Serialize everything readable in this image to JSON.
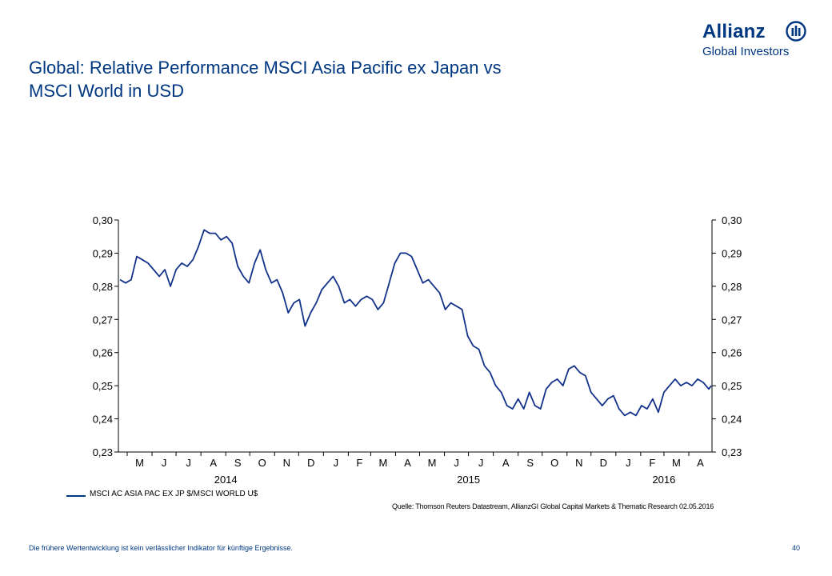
{
  "header": {
    "title_line1": "Global: Relative Performance MSCI Asia Pacific ex Japan vs",
    "title_line2": "MSCI World in USD",
    "logo_word": "Allianz",
    "logo_sub": "Global Investors"
  },
  "colors": {
    "brand": "#003781",
    "series": "#12328a",
    "axis": "#000000"
  },
  "icons": {
    "logo_mark": "allianz-eagle-icon"
  },
  "chart_data": {
    "type": "line",
    "title": "",
    "xlabel": "",
    "ylabel": "",
    "ylim": [
      0.23,
      0.3
    ],
    "yticks": [
      0.3,
      0.29,
      0.28,
      0.27,
      0.26,
      0.25,
      0.24,
      0.23
    ],
    "ytick_labels": [
      "0,30",
      "0,29",
      "0,28",
      "0,27",
      "0,26",
      "0,25",
      "0,24",
      "0,23"
    ],
    "y_axis_both_sides": true,
    "grid": false,
    "xlim": [
      "2014-04-20",
      "2016-04-30"
    ],
    "month_labels": [
      "M",
      "J",
      "J",
      "A",
      "S",
      "O",
      "N",
      "D",
      "J",
      "F",
      "M",
      "A",
      "M",
      "J",
      "J",
      "A",
      "S",
      "O",
      "N",
      "D",
      "J",
      "F",
      "M",
      "A"
    ],
    "month_starts": [
      "2014-05-01",
      "2014-06-01",
      "2014-07-01",
      "2014-08-01",
      "2014-09-01",
      "2014-10-01",
      "2014-11-01",
      "2014-12-01",
      "2015-01-01",
      "2015-02-01",
      "2015-03-01",
      "2015-04-01",
      "2015-05-01",
      "2015-06-01",
      "2015-07-01",
      "2015-08-01",
      "2015-09-01",
      "2015-10-01",
      "2015-11-01",
      "2015-12-01",
      "2016-01-01",
      "2016-02-01",
      "2016-03-01",
      "2016-04-01"
    ],
    "year_labels": [
      {
        "label": "2014",
        "date": "2014-09-01"
      },
      {
        "label": "2015",
        "date": "2015-07-01"
      },
      {
        "label": "2016",
        "date": "2016-03-01"
      }
    ],
    "legend": "bottom-left",
    "series": [
      {
        "name": "MSCI AC ASIA PAC EX JP $/MSCI WORLD U$",
        "points": [
          [
            "2014-04-22",
            0.282
          ],
          [
            "2014-04-29",
            0.281
          ],
          [
            "2014-05-06",
            0.282
          ],
          [
            "2014-05-13",
            0.289
          ],
          [
            "2014-05-20",
            0.288
          ],
          [
            "2014-05-27",
            0.287
          ],
          [
            "2014-06-03",
            0.285
          ],
          [
            "2014-06-10",
            0.283
          ],
          [
            "2014-06-17",
            0.285
          ],
          [
            "2014-06-24",
            0.28
          ],
          [
            "2014-07-01",
            0.285
          ],
          [
            "2014-07-08",
            0.287
          ],
          [
            "2014-07-15",
            0.286
          ],
          [
            "2014-07-22",
            0.288
          ],
          [
            "2014-07-29",
            0.292
          ],
          [
            "2014-08-05",
            0.297
          ],
          [
            "2014-08-12",
            0.296
          ],
          [
            "2014-08-19",
            0.296
          ],
          [
            "2014-08-26",
            0.294
          ],
          [
            "2014-09-02",
            0.295
          ],
          [
            "2014-09-09",
            0.293
          ],
          [
            "2014-09-16",
            0.286
          ],
          [
            "2014-09-23",
            0.283
          ],
          [
            "2014-09-30",
            0.281
          ],
          [
            "2014-10-07",
            0.287
          ],
          [
            "2014-10-14",
            0.291
          ],
          [
            "2014-10-21",
            0.285
          ],
          [
            "2014-10-28",
            0.281
          ],
          [
            "2014-11-04",
            0.282
          ],
          [
            "2014-11-11",
            0.278
          ],
          [
            "2014-11-18",
            0.272
          ],
          [
            "2014-11-25",
            0.275
          ],
          [
            "2014-12-02",
            0.276
          ],
          [
            "2014-12-09",
            0.268
          ],
          [
            "2014-12-16",
            0.272
          ],
          [
            "2014-12-23",
            0.275
          ],
          [
            "2014-12-30",
            0.279
          ],
          [
            "2015-01-06",
            0.281
          ],
          [
            "2015-01-13",
            0.283
          ],
          [
            "2015-01-20",
            0.28
          ],
          [
            "2015-01-27",
            0.275
          ],
          [
            "2015-02-03",
            0.276
          ],
          [
            "2015-02-10",
            0.274
          ],
          [
            "2015-02-17",
            0.276
          ],
          [
            "2015-02-24",
            0.277
          ],
          [
            "2015-03-03",
            0.276
          ],
          [
            "2015-03-10",
            0.273
          ],
          [
            "2015-03-17",
            0.275
          ],
          [
            "2015-03-24",
            0.281
          ],
          [
            "2015-03-31",
            0.287
          ],
          [
            "2015-04-07",
            0.29
          ],
          [
            "2015-04-14",
            0.29
          ],
          [
            "2015-04-21",
            0.289
          ],
          [
            "2015-04-28",
            0.285
          ],
          [
            "2015-05-05",
            0.281
          ],
          [
            "2015-05-12",
            0.282
          ],
          [
            "2015-05-19",
            0.28
          ],
          [
            "2015-05-26",
            0.278
          ],
          [
            "2015-06-02",
            0.273
          ],
          [
            "2015-06-09",
            0.275
          ],
          [
            "2015-06-16",
            0.274
          ],
          [
            "2015-06-23",
            0.273
          ],
          [
            "2015-06-30",
            0.265
          ],
          [
            "2015-07-07",
            0.262
          ],
          [
            "2015-07-14",
            0.261
          ],
          [
            "2015-07-21",
            0.256
          ],
          [
            "2015-07-28",
            0.254
          ],
          [
            "2015-08-04",
            0.25
          ],
          [
            "2015-08-11",
            0.248
          ],
          [
            "2015-08-18",
            0.244
          ],
          [
            "2015-08-25",
            0.243
          ],
          [
            "2015-09-01",
            0.246
          ],
          [
            "2015-09-08",
            0.243
          ],
          [
            "2015-09-15",
            0.248
          ],
          [
            "2015-09-22",
            0.244
          ],
          [
            "2015-09-29",
            0.243
          ],
          [
            "2015-10-06",
            0.249
          ],
          [
            "2015-10-13",
            0.251
          ],
          [
            "2015-10-20",
            0.252
          ],
          [
            "2015-10-27",
            0.25
          ],
          [
            "2015-11-03",
            0.255
          ],
          [
            "2015-11-10",
            0.256
          ],
          [
            "2015-11-17",
            0.254
          ],
          [
            "2015-11-24",
            0.253
          ],
          [
            "2015-12-01",
            0.248
          ],
          [
            "2015-12-08",
            0.246
          ],
          [
            "2015-12-15",
            0.244
          ],
          [
            "2015-12-22",
            0.246
          ],
          [
            "2015-12-29",
            0.247
          ],
          [
            "2016-01-05",
            0.243
          ],
          [
            "2016-01-12",
            0.241
          ],
          [
            "2016-01-19",
            0.242
          ],
          [
            "2016-01-26",
            0.241
          ],
          [
            "2016-02-02",
            0.244
          ],
          [
            "2016-02-09",
            0.243
          ],
          [
            "2016-02-16",
            0.246
          ],
          [
            "2016-02-23",
            0.242
          ],
          [
            "2016-03-01",
            0.248
          ],
          [
            "2016-03-08",
            0.25
          ],
          [
            "2016-03-15",
            0.252
          ],
          [
            "2016-03-22",
            0.25
          ],
          [
            "2016-03-29",
            0.251
          ],
          [
            "2016-04-05",
            0.25
          ],
          [
            "2016-04-12",
            0.252
          ],
          [
            "2016-04-19",
            0.251
          ],
          [
            "2016-04-26",
            0.249
          ],
          [
            "2016-04-29",
            0.25
          ]
        ]
      }
    ]
  },
  "legend_label": "MSCI AC ASIA PAC EX JP $/MSCI WORLD U$",
  "source": "Quelle: Thomson Reuters Datastream, AllianzGI Global Capital Markets & Thematic Research 02.05.2016",
  "footer": {
    "disclaimer": "Die frühere Wertentwicklung ist kein verlässlicher Indikator für künftige Ergebnisse.",
    "page_number": "40"
  }
}
